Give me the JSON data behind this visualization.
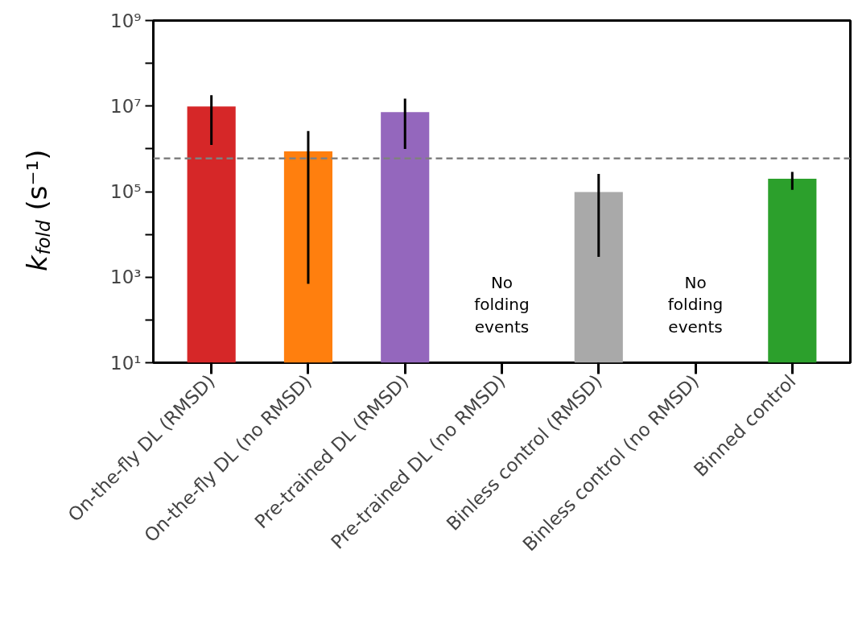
{
  "chart_data": {
    "type": "bar",
    "ylabel": "k$_{fold}$ (s⁻¹)",
    "categories": [
      "On-the-fly DL (RMSD)",
      "On-the-fly DL (no RMSD)",
      "Pre-trained DL (RMSD)",
      "Pre-trained DL (no RMSD)",
      "Binless control (RMSD)",
      "Binless control (no RMSD)",
      "Binned control"
    ],
    "values": [
      9800000,
      870000,
      7200000,
      null,
      98000,
      null,
      200000
    ],
    "colors": [
      "#d62728",
      "#ff7f0e",
      "#9467bd",
      "#1f77b4",
      "#a9a9a9",
      "#8c564b",
      "#2ca02c"
    ],
    "errors": [
      [
        1240000,
        18000000
      ],
      [
        700,
        2600000
      ],
      [
        1000000,
        15000000
      ],
      null,
      [
        3000,
        260000
      ],
      null,
      [
        110000,
        290000
      ]
    ],
    "log": "y",
    "ylim": [
      10,
      1000000000
    ],
    "yticks": [
      {
        "value": 10,
        "label": "10¹"
      },
      {
        "value": 100,
        "label": null
      },
      {
        "value": 1000,
        "label": "10³"
      },
      {
        "value": 10000,
        "label": null
      },
      {
        "value": 100000,
        "label": "10⁵"
      },
      {
        "value": 1000000,
        "label": null
      },
      {
        "value": 10000000,
        "label": "10⁷"
      },
      {
        "value": 100000000,
        "label": null
      },
      {
        "value": 1000000000,
        "label": "10⁹"
      }
    ],
    "ref_lines": [
      {
        "axis": "y",
        "value": 600000,
        "color": "#808080",
        "line_style": "dashed"
      }
    ],
    "annotations": [
      "No\nfolding\nevents",
      "No\nfolding\nevents"
    ],
    "grid": false
  }
}
